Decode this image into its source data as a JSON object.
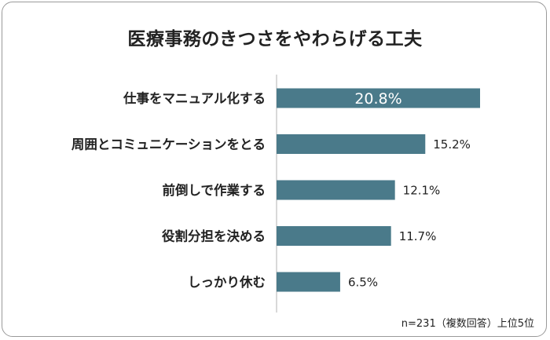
{
  "chart_data": {
    "type": "bar",
    "orientation": "horizontal",
    "title": "医療事務のきつさをやわらげる工夫",
    "categories": [
      "仕事をマニュアル化する",
      "周囲とコミュニケーションをとる",
      "前倒しで作業する",
      "役割分担を決める",
      "しっかり休む"
    ],
    "values": [
      20.8,
      15.2,
      12.1,
      11.7,
      6.5
    ],
    "value_labels": [
      "20.8%",
      "15.2%",
      "12.1%",
      "11.7%",
      "6.5%"
    ],
    "xlim": [
      0,
      20.8
    ],
    "grid": false,
    "bar_color": "#4a7a8a",
    "axis_color": "#b3b3b3",
    "note": "n=231（複数回答）上位5位"
  }
}
